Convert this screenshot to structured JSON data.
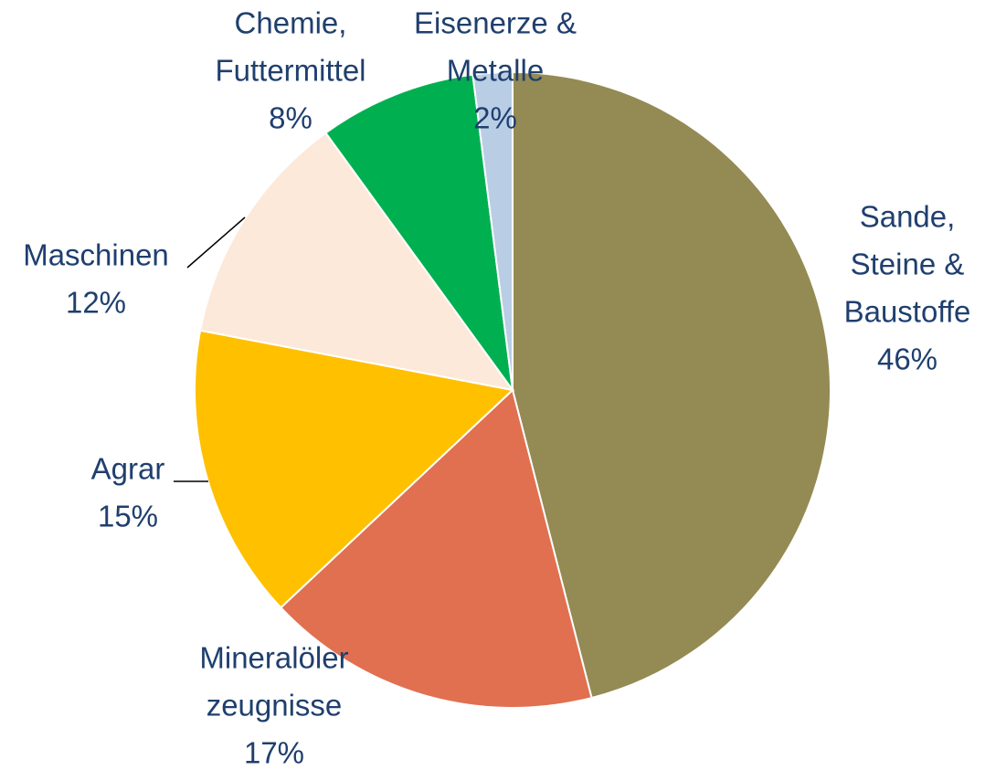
{
  "chart_data": {
    "type": "pie",
    "categories": [
      [
        "Sande,",
        "Steine &",
        "Baustoffe"
      ],
      [
        "Mineralöler",
        "zeugnisse"
      ],
      [
        "Agrar"
      ],
      [
        "Maschinen"
      ],
      [
        "Chemie,",
        "Futtermittel"
      ],
      [
        "Eisenerze &",
        "Metalle"
      ]
    ],
    "values": [
      46,
      17,
      15,
      12,
      8,
      2
    ],
    "value_labels": [
      "46%",
      "17%",
      "15%",
      "12%",
      "8%",
      "2%"
    ],
    "colors": [
      "#948a54",
      "#e07050",
      "#ffc000",
      "#fde9d9",
      "#00b050",
      "#b9cde5"
    ]
  }
}
